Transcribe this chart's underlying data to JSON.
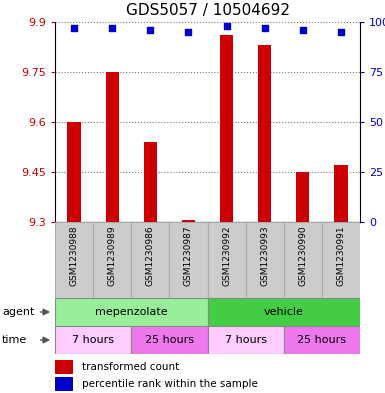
{
  "title": "GDS5057 / 10504692",
  "samples": [
    "GSM1230988",
    "GSM1230989",
    "GSM1230986",
    "GSM1230987",
    "GSM1230992",
    "GSM1230993",
    "GSM1230990",
    "GSM1230991"
  ],
  "bar_values": [
    9.6,
    9.75,
    9.54,
    9.305,
    9.86,
    9.83,
    9.45,
    9.47
  ],
  "percentile_values": [
    97,
    97,
    96,
    95,
    98,
    97,
    96,
    95
  ],
  "ymin": 9.3,
  "ymax": 9.9,
  "yticks": [
    9.3,
    9.45,
    9.6,
    9.75,
    9.9
  ],
  "ytick_labels": [
    "9.3",
    "9.45",
    "9.6",
    "9.75",
    "9.9"
  ],
  "y2ticks": [
    0,
    25,
    50,
    75,
    100
  ],
  "y2tick_labels": [
    "0",
    "25",
    "50",
    "75",
    "100%"
  ],
  "bar_color": "#cc0000",
  "percentile_color": "#0000cc",
  "grid_color": "#777777",
  "agent_groups": [
    {
      "label": "mepenzolate",
      "start": 0,
      "end": 4,
      "color": "#99ee99"
    },
    {
      "label": "vehicle",
      "start": 4,
      "end": 8,
      "color": "#44cc44"
    }
  ],
  "time_groups": [
    {
      "label": "7 hours",
      "start": 0,
      "end": 2,
      "color": "#ffccff"
    },
    {
      "label": "25 hours",
      "start": 2,
      "end": 4,
      "color": "#ee77ee"
    },
    {
      "label": "7 hours",
      "start": 4,
      "end": 6,
      "color": "#ffccff"
    },
    {
      "label": "25 hours",
      "start": 6,
      "end": 8,
      "color": "#ee77ee"
    }
  ],
  "legend_bar_label": "transformed count",
  "legend_pct_label": "percentile rank within the sample",
  "agent_label": "agent",
  "time_label": "time",
  "bar_width": 0.35,
  "title_fontsize": 11,
  "tick_fontsize": 8,
  "label_fontsize": 8,
  "sample_bg_color": "#cccccc",
  "sample_border_color": "#aaaaaa",
  "fig_width": 3.85,
  "fig_height": 3.93,
  "fig_dpi": 100
}
